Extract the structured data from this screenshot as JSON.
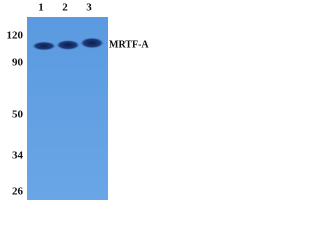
{
  "lanes": [
    "1",
    "2",
    "3"
  ],
  "markers": [
    120,
    90,
    50,
    34,
    26
  ],
  "band_label": "MRTF-A"
}
